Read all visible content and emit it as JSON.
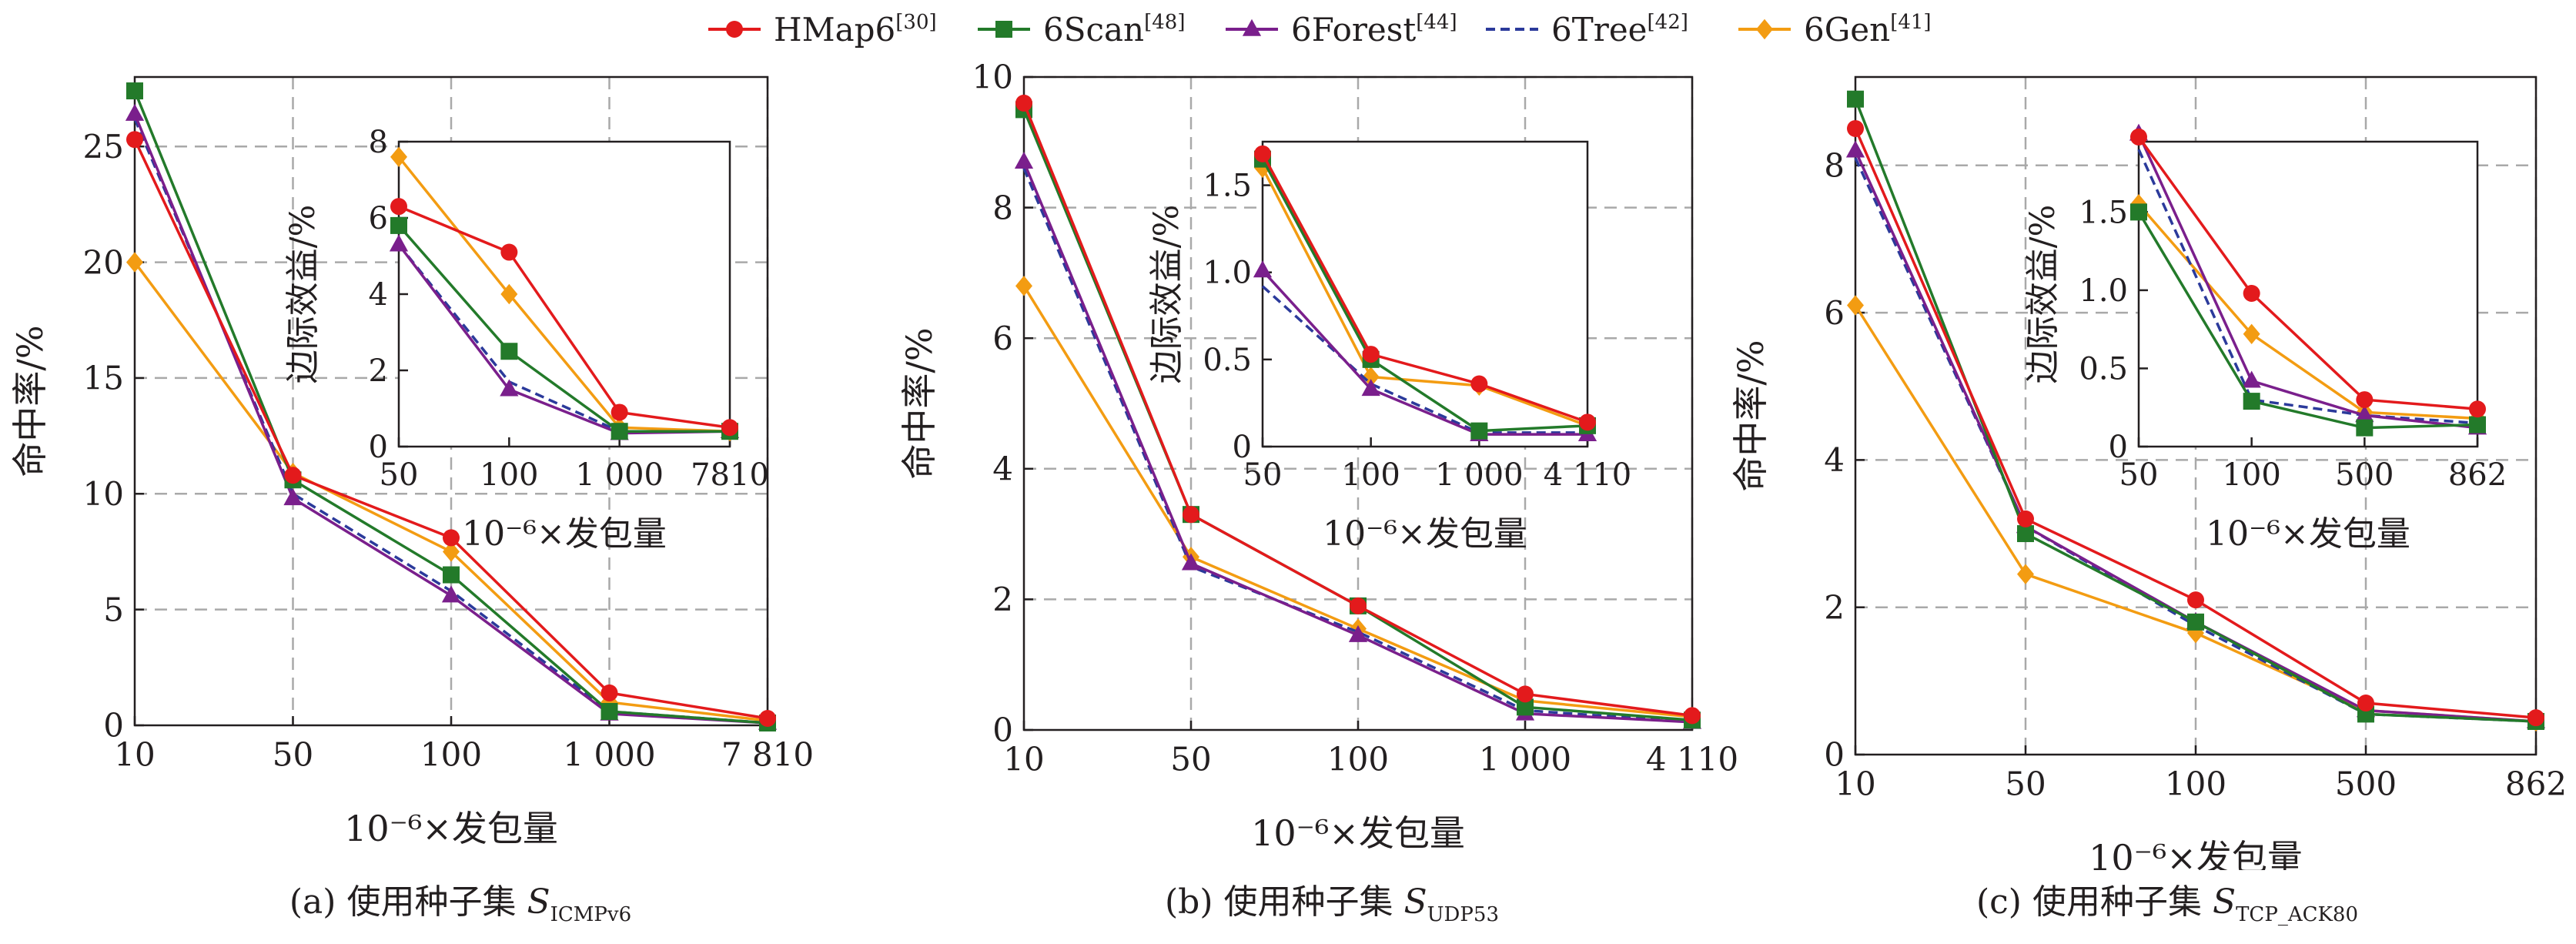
{
  "legend": [
    {
      "name": "HMap6",
      "ref": "[30]",
      "color": "#e31a1c",
      "marker": "circle",
      "dash": false
    },
    {
      "name": "6Scan",
      "ref": "[48]",
      "color": "#237a2a",
      "marker": "square",
      "dash": false
    },
    {
      "name": "6Forest",
      "ref": "[44]",
      "color": "#7a1f8c",
      "marker": "triangle",
      "dash": false
    },
    {
      "name": "6Tree",
      "ref": "[42]",
      "color": "#2b3a9b",
      "marker": "none",
      "dash": true
    },
    {
      "name": "6Gen",
      "ref": "[41]",
      "color": "#f39c12",
      "marker": "diamond",
      "dash": false
    }
  ],
  "captions": [
    {
      "prefix": "(a)  使用种子集 ",
      "sym": "S",
      "sub": "ICMPv6"
    },
    {
      "prefix": "(b)  使用种子集 ",
      "sym": "S",
      "sub": "UDP53"
    },
    {
      "prefix": "(c)  使用种子集 ",
      "sym": "S",
      "sub": "TCP_ACK80"
    }
  ],
  "chart_data": [
    {
      "type": "line",
      "xlabel": "10⁻⁶×发包量",
      "ylabel": "命中率/%",
      "categories": [
        "10",
        "50",
        "100",
        "1 000",
        "7 810"
      ],
      "ylim": [
        0,
        28
      ],
      "yticks": [
        0,
        5,
        10,
        15,
        20,
        25
      ],
      "grid": true,
      "series": [
        {
          "name": "HMap6",
          "values": [
            25.3,
            10.8,
            8.1,
            1.4,
            0.3
          ]
        },
        {
          "name": "6Scan",
          "values": [
            27.4,
            10.6,
            6.5,
            0.6,
            0.1
          ]
        },
        {
          "name": "6Forest",
          "values": [
            26.4,
            9.8,
            5.6,
            0.5,
            0.1
          ]
        },
        {
          "name": "6Tree",
          "values": [
            26.2,
            10.0,
            5.8,
            0.6,
            0.1
          ]
        },
        {
          "name": "6Gen",
          "values": [
            20.0,
            10.9,
            7.5,
            1.0,
            0.2
          ]
        }
      ],
      "inset": {
        "xlabel": "10⁻⁶×发包量",
        "ylabel": "边际效益/%",
        "categories": [
          "50",
          "100",
          "1 000",
          "7810"
        ],
        "ylim": [
          0,
          8
        ],
        "yticks": [
          0,
          2,
          4,
          6,
          8
        ],
        "series": [
          {
            "name": "HMap6",
            "values": [
              6.3,
              5.1,
              0.9,
              0.5
            ]
          },
          {
            "name": "6Scan",
            "values": [
              5.8,
              2.5,
              0.4,
              0.4
            ]
          },
          {
            "name": "6Forest",
            "values": [
              5.3,
              1.5,
              0.35,
              0.4
            ]
          },
          {
            "name": "6Tree",
            "values": [
              5.3,
              1.7,
              0.4,
              0.4
            ]
          },
          {
            "name": "6Gen",
            "values": [
              7.6,
              4.0,
              0.5,
              0.4
            ]
          }
        ]
      }
    },
    {
      "type": "line",
      "xlabel": "10⁻⁶×发包量",
      "ylabel": "命中率/%",
      "categories": [
        "10",
        "50",
        "100",
        "1 000",
        "4 110"
      ],
      "ylim": [
        0,
        10
      ],
      "yticks": [
        0,
        2,
        4,
        6,
        8,
        10
      ],
      "grid": true,
      "series": [
        {
          "name": "HMap6",
          "values": [
            9.6,
            3.3,
            1.9,
            0.55,
            0.22
          ]
        },
        {
          "name": "6Scan",
          "values": [
            9.5,
            3.3,
            1.9,
            0.35,
            0.15
          ]
        },
        {
          "name": "6Forest",
          "values": [
            8.7,
            2.55,
            1.45,
            0.25,
            0.12
          ]
        },
        {
          "name": "6Tree",
          "values": [
            8.6,
            2.5,
            1.5,
            0.3,
            0.12
          ]
        },
        {
          "name": "6Gen",
          "values": [
            6.8,
            2.65,
            1.55,
            0.45,
            0.2
          ]
        }
      ],
      "inset": {
        "xlabel": "10⁻⁶×发包量",
        "ylabel": "边际效益/%",
        "categories": [
          "50",
          "100",
          "1 000",
          "4 110"
        ],
        "ylim": [
          0,
          1.75
        ],
        "yticks": [
          0,
          0.5,
          1.0,
          1.5
        ],
        "ytickLabels": [
          "0",
          "0.5",
          "1.0",
          "1.5"
        ],
        "series": [
          {
            "name": "HMap6",
            "values": [
              1.68,
              0.53,
              0.36,
              0.14
            ]
          },
          {
            "name": "6Scan",
            "values": [
              1.65,
              0.5,
              0.09,
              0.12
            ]
          },
          {
            "name": "6Forest",
            "values": [
              1.01,
              0.33,
              0.07,
              0.07
            ]
          },
          {
            "name": "6Tree",
            "values": [
              0.92,
              0.36,
              0.08,
              0.08
            ]
          },
          {
            "name": "6Gen",
            "values": [
              1.6,
              0.4,
              0.35,
              0.12
            ]
          }
        ]
      }
    },
    {
      "type": "line",
      "xlabel": "10⁻⁶×发包量",
      "ylabel": "命中率/%",
      "categories": [
        "10",
        "50",
        "100",
        "500",
        "862"
      ],
      "ylim": [
        0,
        9.2
      ],
      "yticks": [
        0,
        2,
        4,
        6,
        8
      ],
      "grid": true,
      "series": [
        {
          "name": "HMap6",
          "values": [
            8.5,
            3.2,
            2.1,
            0.7,
            0.5
          ]
        },
        {
          "name": "6Scan",
          "values": [
            8.9,
            3.0,
            1.8,
            0.55,
            0.45
          ]
        },
        {
          "name": "6Forest",
          "values": [
            8.2,
            3.1,
            1.8,
            0.6,
            0.45
          ]
        },
        {
          "name": "6Tree",
          "values": [
            8.1,
            3.1,
            1.75,
            0.55,
            0.45
          ]
        },
        {
          "name": "6Gen",
          "values": [
            6.1,
            2.45,
            1.65,
            0.6,
            0.45
          ]
        }
      ],
      "inset": {
        "xlabel": "10⁻⁶×发包量",
        "ylabel": "边际效益/%",
        "categories": [
          "50",
          "100",
          "500",
          "862"
        ],
        "ylim": [
          0,
          1.95
        ],
        "yticks": [
          0,
          0.5,
          1.0,
          1.5
        ],
        "ytickLabels": [
          "0",
          "0.5",
          "1.0",
          "1.5"
        ],
        "series": [
          {
            "name": "HMap6",
            "values": [
              1.98,
              0.98,
              0.3,
              0.24
            ]
          },
          {
            "name": "6Scan",
            "values": [
              1.5,
              0.29,
              0.12,
              0.14
            ]
          },
          {
            "name": "6Forest",
            "values": [
              2.0,
              0.42,
              0.2,
              0.12
            ]
          },
          {
            "name": "6Tree",
            "values": [
              1.9,
              0.3,
              0.2,
              0.15
            ]
          },
          {
            "name": "6Gen",
            "values": [
              1.55,
              0.72,
              0.22,
              0.18
            ]
          }
        ]
      }
    }
  ]
}
